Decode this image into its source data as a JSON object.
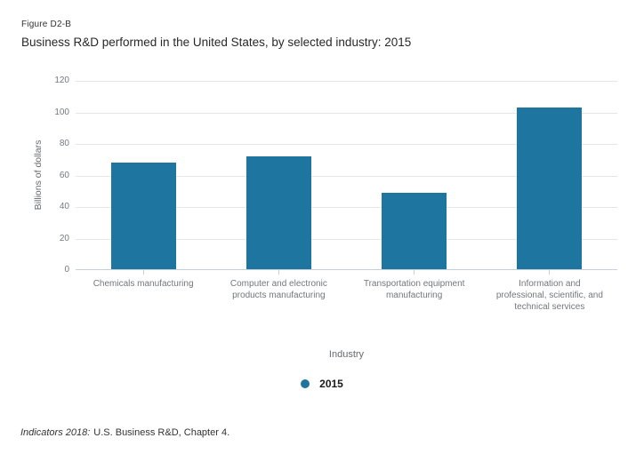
{
  "header": {
    "figure_label": "Figure D2-B",
    "title": "Business R&D performed in the United States, by selected industry: 2015"
  },
  "chart_data": {
    "type": "bar",
    "title": "Business R&D performed in the United States, by selected industry: 2015",
    "categories": [
      "Chemicals manufacturing",
      "Computer and electronic products manufacturing",
      "Transportation equipment manufacturing",
      "Information and professional, scientific, and technical services"
    ],
    "categories_wrapped": [
      [
        "Chemicals manufacturing"
      ],
      [
        "Computer and electronic",
        "products manufacturing"
      ],
      [
        "Transportation equipment",
        "manufacturing"
      ],
      [
        "Information and",
        "professional, scientific, and",
        "technical services"
      ]
    ],
    "values": [
      68,
      72,
      49,
      103
    ],
    "xlabel": "Industry",
    "ylabel": "Billions of dollars",
    "ylim": [
      0,
      120
    ],
    "ytick_step": 20,
    "grid": true,
    "legend": [
      "2015"
    ],
    "legend_position": "bottom",
    "bar_color": "#1E759F",
    "gridline_color": "#e6e6e6",
    "axis_line_color": "#c6d0d9"
  },
  "footer": {
    "source_italic": "Indicators 2018:",
    "source_rest": "U.S. Business R&D, Chapter 4."
  }
}
